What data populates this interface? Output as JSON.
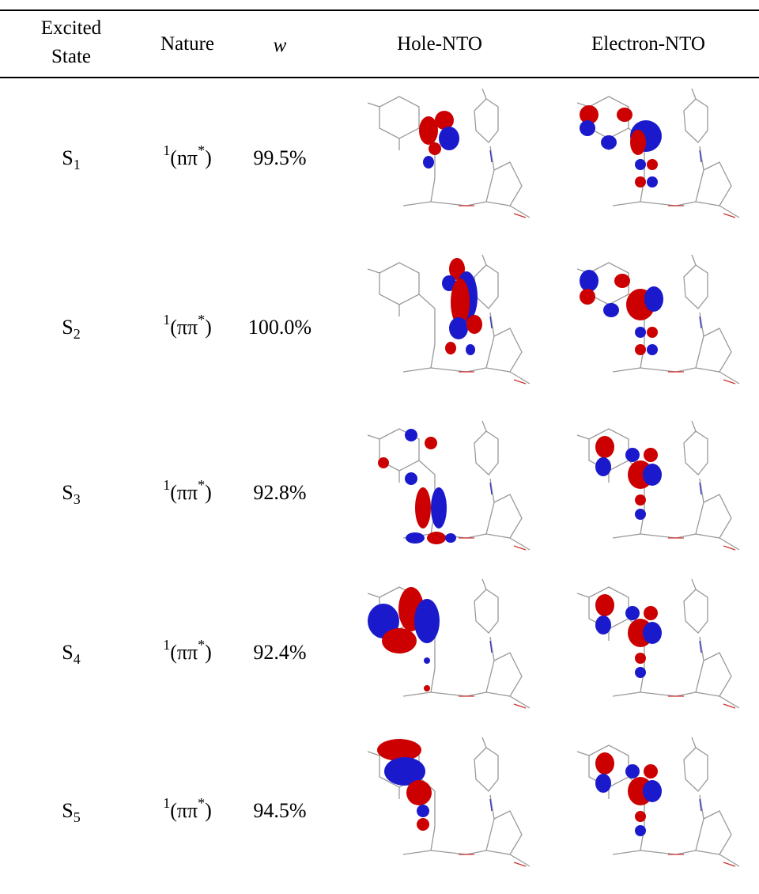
{
  "header": {
    "state": [
      "Excited",
      "State"
    ],
    "nature": "Nature",
    "weight": "w",
    "hole": "Hole-NTO",
    "electron": "Electron-NTO"
  },
  "rows": [
    {
      "state": [
        "S",
        "1"
      ],
      "nature": [
        "1",
        "(nπ",
        "*",
        ")"
      ],
      "weight": "99.5%"
    },
    {
      "state": [
        "S",
        "2"
      ],
      "nature": [
        "1",
        "(ππ",
        "*",
        ")"
      ],
      "weight": "100.0%"
    },
    {
      "state": [
        "S",
        "3"
      ],
      "nature": [
        "1",
        "(ππ",
        "*",
        ")"
      ],
      "weight": "92.8%"
    },
    {
      "state": [
        "S",
        "4"
      ],
      "nature": [
        "1",
        "(ππ",
        "*",
        ")"
      ],
      "weight": "92.4%"
    },
    {
      "state": [
        "S",
        "5"
      ],
      "nature": [
        "1",
        "(ππ",
        "*",
        ")"
      ],
      "weight": "94.5%"
    }
  ]
}
